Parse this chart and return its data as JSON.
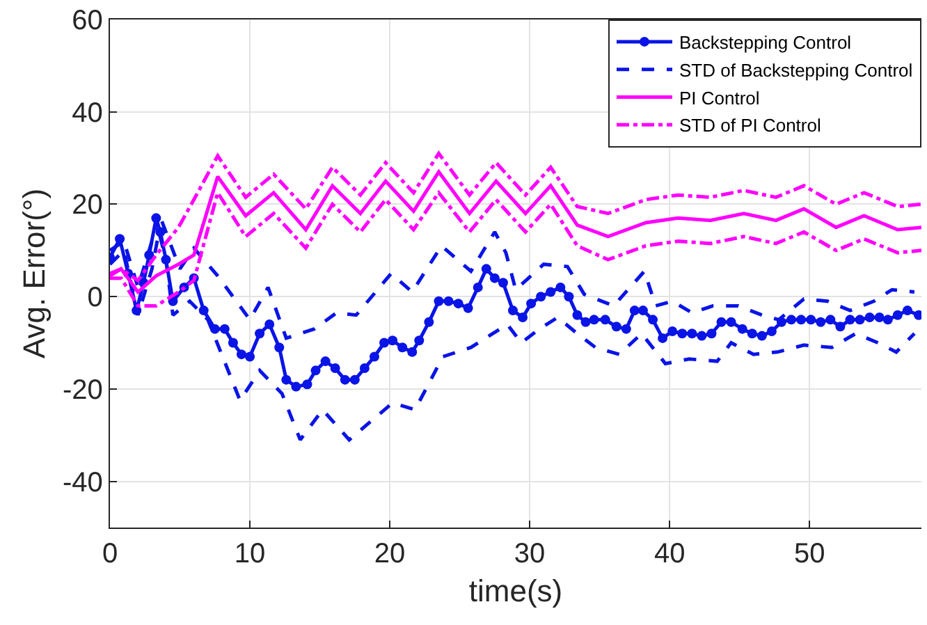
{
  "chart_data": {
    "type": "line",
    "xlabel": "time(s)",
    "ylabel": "Avg. Error(°)",
    "xlim": [
      0,
      58
    ],
    "xticks": [
      0,
      10,
      20,
      30,
      40,
      50
    ],
    "ylim": [
      -50,
      60
    ],
    "yticks": [
      -40,
      -20,
      0,
      20,
      40,
      60
    ],
    "grid": true,
    "legend": "top right",
    "series": [
      {
        "name": "Backstepping Control",
        "color": "#0a14e6",
        "marker": "circle",
        "line_style": "solid",
        "x": [
          0,
          0.7,
          1.3,
          1.9,
          2.4,
          2.8,
          3.3,
          3.6,
          4,
          4.5,
          5.3,
          6,
          6.7,
          7.5,
          8.2,
          8.8,
          9.4,
          10,
          10.7,
          11.4,
          12.1,
          12.6,
          13.3,
          14.1,
          14.7,
          15.4,
          16.1,
          16.8,
          17.5,
          18.2,
          18.9,
          19.6,
          20.2,
          20.9,
          21.6,
          22.1,
          22.8,
          23.5,
          24.2,
          24.9,
          25.6,
          26.3,
          26.9,
          27.5,
          28.1,
          28.8,
          29.5,
          30.1,
          30.8,
          31.5,
          32.2,
          32.8,
          33.4,
          34,
          34.6,
          35.4,
          36.2,
          36.9,
          37.5,
          38.1,
          38.8,
          39.5,
          40.2,
          40.9,
          41.6,
          42.3,
          43,
          43.7,
          44.4,
          45.2,
          45.9,
          46.6,
          47.3,
          48,
          48.7,
          49.4,
          50.1,
          50.8,
          51.5,
          52.2,
          52.9,
          53.6,
          54.3,
          55,
          55.6,
          56.3,
          57,
          57.8
        ],
        "values": [
          8.5,
          12.5,
          5,
          -3,
          3,
          9,
          17,
          14,
          8,
          -1,
          2,
          4,
          -3,
          -7,
          -7,
          -10,
          -12.5,
          -13,
          -8,
          -6,
          -11,
          -18,
          -19.5,
          -19,
          -16,
          -14,
          -15.5,
          -18,
          -18,
          -15.5,
          -13,
          -10,
          -9.5,
          -11,
          -12,
          -9.5,
          -5.5,
          -1,
          -1,
          -1.5,
          -2.5,
          2,
          6,
          4,
          3,
          -3,
          -4.5,
          -1.5,
          0,
          1,
          2,
          0,
          -4,
          -5.5,
          -5,
          -5,
          -6.5,
          -7,
          -3,
          -3,
          -5,
          -9,
          -7.5,
          -8,
          -8,
          -8.5,
          -8,
          -5.5,
          -5.5,
          -7,
          -8,
          -8.5,
          -7.5,
          -5.5,
          -5,
          -5,
          -5,
          -5.5,
          -5,
          -6.5,
          -5,
          -5,
          -4.5,
          -4.5,
          -5,
          -4,
          -3,
          -4
        ]
      },
      {
        "name": "STD of Backstepping Control",
        "color": "#0a14e6",
        "marker": "none",
        "line_style": "dashed",
        "x": [
          0,
          1,
          2,
          3,
          3.5,
          4,
          5,
          6,
          7.7,
          10,
          11.3,
          12.6,
          14.6,
          16.2,
          17.6,
          20.1,
          21.6,
          23.7,
          25.8,
          27.5,
          28.3,
          29,
          31,
          32.7,
          33.9,
          36,
          38.2,
          39,
          40.2,
          41.6,
          43.1,
          44.9,
          46.6,
          47.8,
          49.6,
          51.3,
          52.9,
          54.6,
          55.9,
          57.5
        ],
        "values": [
          10,
          12,
          2,
          12,
          18,
          14,
          6,
          10.5,
          4.5,
          -5,
          2,
          -9,
          -7,
          -3.5,
          -4,
          5,
          1,
          11,
          5.5,
          14,
          9.5,
          1.5,
          7,
          6.5,
          0.5,
          -2,
          5.5,
          -2,
          -1,
          -3.5,
          -2,
          -2,
          -4,
          -5,
          -0.5,
          -1,
          -3,
          -1,
          1.5,
          1
        ]
      },
      {
        "color": "#0a14e6",
        "marker": "none",
        "line_style": "dashed",
        "x": [
          0,
          1,
          2,
          3,
          3.5,
          4,
          4.5,
          5.7,
          7,
          9.3,
          10.7,
          12.3,
          13.6,
          15.2,
          17.1,
          20.2,
          21.8,
          23.8,
          25.8,
          28.4,
          29.4,
          30.7,
          32,
          33.4,
          34.7,
          36.4,
          38,
          39.7,
          41.4,
          43.4,
          44.4,
          46,
          47.7,
          49.6,
          51.6,
          53.3,
          54.9,
          56.2,
          57.5
        ],
        "values": [
          7,
          10,
          -4,
          6,
          14,
          8,
          -4,
          -1,
          -5,
          -22.5,
          -16,
          -21,
          -31,
          -24.5,
          -31,
          -23,
          -24.5,
          -13,
          -11,
          -6,
          -10,
          -7,
          -4.5,
          -8,
          -11,
          -12.5,
          -8,
          -14.5,
          -13.5,
          -14,
          -10,
          -12.5,
          -12,
          -10.5,
          -11,
          -8,
          -10,
          -12,
          -8
        ]
      },
      {
        "name": "PI Control",
        "color": "#ff00ff",
        "marker": "none",
        "line_style": "solid",
        "x": [
          0,
          0.8,
          2,
          3.3,
          4.9,
          6,
          7.7,
          9.7,
          11.7,
          14,
          15.9,
          17.9,
          19.7,
          21.7,
          23.5,
          25.7,
          27.6,
          29.7,
          31.5,
          33.4,
          35.6,
          38.3,
          40.6,
          42.9,
          45.3,
          47.6,
          49.6,
          51.9,
          53.9,
          56.3,
          58
        ],
        "values": [
          4.5,
          6,
          1,
          4.5,
          7,
          9,
          26,
          17.5,
          22.5,
          14.5,
          24,
          18,
          25,
          18.5,
          27,
          18,
          25,
          18,
          24,
          15.5,
          13,
          16,
          17,
          16.5,
          18,
          16.5,
          19,
          15,
          17.5,
          14.5,
          15
        ]
      },
      {
        "name": "STD of PI Control",
        "color": "#ff00ff",
        "marker": "none",
        "line_style": "dashdot",
        "x": [
          0,
          0.8,
          2,
          3.3,
          4.9,
          6,
          7.7,
          9.7,
          11.7,
          14,
          15.9,
          17.9,
          19.7,
          21.7,
          23.5,
          25.7,
          27.6,
          29.7,
          31.5,
          33.4,
          35.6,
          38.3,
          40.6,
          42.9,
          45.3,
          47.6,
          49.6,
          51.9,
          53.9,
          56.3,
          58
        ],
        "values": [
          5,
          6,
          3.5,
          9,
          15,
          21,
          30.5,
          21.5,
          26.5,
          19,
          28,
          22,
          29,
          22.5,
          31,
          22,
          29,
          22,
          28,
          19.5,
          18,
          21,
          22,
          21.5,
          23,
          21.5,
          24,
          20,
          22.5,
          19.5,
          20
        ]
      },
      {
        "color": "#ff00ff",
        "marker": "none",
        "line_style": "dashdot",
        "x": [
          0,
          0.8,
          2,
          3.3,
          4.9,
          6,
          7.7,
          9.7,
          11.7,
          14,
          15.9,
          17.9,
          19.7,
          21.7,
          23.5,
          25.7,
          27.6,
          29.7,
          31.5,
          33.4,
          35.6,
          38.3,
          40.6,
          42.9,
          45.3,
          47.6,
          49.6,
          51.9,
          53.9,
          56.3,
          58
        ],
        "values": [
          4,
          4,
          -2,
          -2,
          1,
          3.5,
          22.5,
          13,
          18,
          10.5,
          20,
          14,
          21,
          14.5,
          22.5,
          14,
          21,
          14,
          20,
          11,
          8,
          11,
          12,
          11.5,
          13,
          11.5,
          14,
          10,
          12.5,
          9.5,
          10
        ]
      }
    ]
  }
}
